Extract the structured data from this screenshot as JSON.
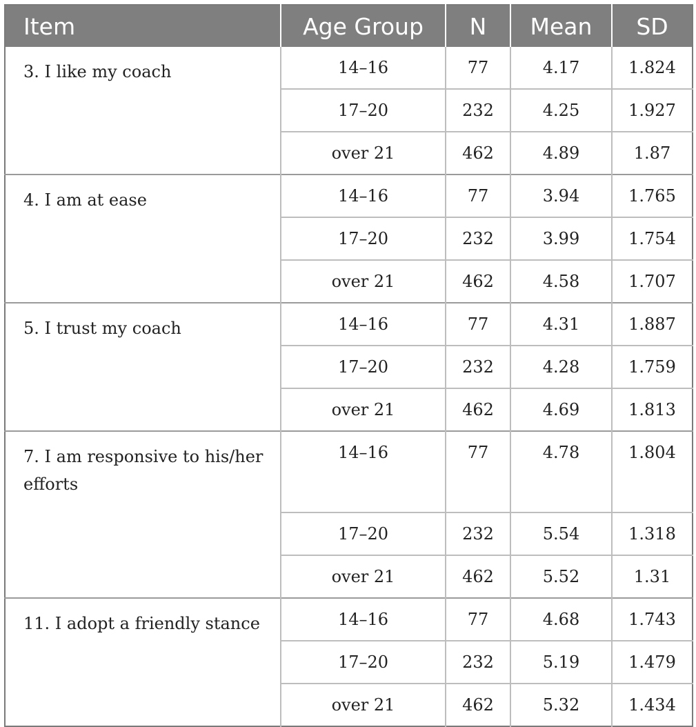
{
  "table": {
    "headers": [
      "Item",
      "Age Group",
      "N",
      "Mean",
      "SD"
    ],
    "groups": [
      {
        "item": "3. I like my coach",
        "rows": [
          {
            "age": "14–16",
            "n": "77",
            "mean": "4.17",
            "sd": "1.824"
          },
          {
            "age": "17–20",
            "n": "232",
            "mean": "4.25",
            "sd": "1.927"
          },
          {
            "age": "over 21",
            "n": "462",
            "mean": "4.89",
            "sd": "1.87"
          }
        ]
      },
      {
        "item": "4. I am at ease",
        "rows": [
          {
            "age": "14–16",
            "n": "77",
            "mean": "3.94",
            "sd": "1.765"
          },
          {
            "age": "17–20",
            "n": "232",
            "mean": "3.99",
            "sd": "1.754"
          },
          {
            "age": "over 21",
            "n": "462",
            "mean": "4.58",
            "sd": "1.707"
          }
        ]
      },
      {
        "item": "5. I trust my coach",
        "rows": [
          {
            "age": "14–16",
            "n": "77",
            "mean": "4.31",
            "sd": "1.887"
          },
          {
            "age": "17–20",
            "n": "232",
            "mean": "4.28",
            "sd": "1.759"
          },
          {
            "age": "over 21",
            "n": "462",
            "mean": "4.69",
            "sd": "1.813"
          }
        ]
      },
      {
        "item": "7. I am responsive to his/her efforts",
        "rows": [
          {
            "age": "14–16",
            "n": "77",
            "mean": "4.78",
            "sd": "1.804"
          },
          {
            "age": "17–20",
            "n": "232",
            "mean": "5.54",
            "sd": "1.318"
          },
          {
            "age": "over 21",
            "n": "462",
            "mean": "5.52",
            "sd": "1.31"
          }
        ]
      },
      {
        "item": "11. I adopt a friendly stance",
        "rows": [
          {
            "age": "14–16",
            "n": "77",
            "mean": "4.68",
            "sd": "1.743"
          },
          {
            "age": "17–20",
            "n": "232",
            "mean": "5.19",
            "sd": "1.479"
          },
          {
            "age": "over 21",
            "n": "462",
            "mean": "5.32",
            "sd": "1.434"
          }
        ]
      }
    ]
  }
}
